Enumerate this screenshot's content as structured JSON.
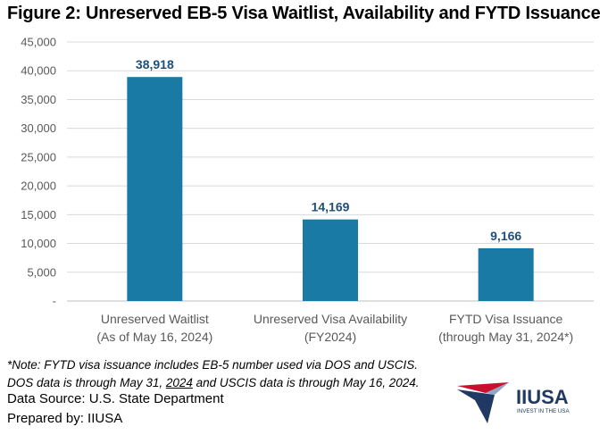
{
  "title": "Figure 2: Unreserved EB-5 Visa Waitlist, Availability and FYTD Issuance",
  "chart_data": {
    "type": "bar",
    "categories": [
      [
        "Unreserved Waitlist",
        "(As of May 16, 2024)"
      ],
      [
        "Unreserved Visa Availability",
        "(FY2024)"
      ],
      [
        "FYTD Visa Issuance",
        "(through May 31, 2024*)"
      ]
    ],
    "values": [
      38918,
      14169,
      9166
    ],
    "data_labels": [
      "38,918",
      "14,169",
      "9,166"
    ],
    "ylim": [
      0,
      45000
    ],
    "yticks": [
      0,
      5000,
      10000,
      15000,
      20000,
      25000,
      30000,
      35000,
      40000,
      45000
    ],
    "ytick_labels": [
      "-",
      "5,000",
      "10,000",
      "15,000",
      "20,000",
      "25,000",
      "30,000",
      "35,000",
      "40,000",
      "45,000"
    ],
    "grid": true,
    "bar_color": "#1a7aa6",
    "label_color": "#1f4e79"
  },
  "footer": {
    "note_line1": "*Note: FYTD visa issuance includes EB-5 number used via DOS and USCIS.",
    "note_line2_a": "DOS data is through May 31, ",
    "note_line2_b": "2024",
    "note_line2_c": " and USCIS data is through May 16, 2024.",
    "source": "Data Source: U.S. State Department",
    "prepared": "Prepared by: IIUSA"
  },
  "logo": {
    "name": "IIUSA",
    "tagline": "INVEST IN THE USA",
    "red": "#c8102e",
    "blue": "#1f3864"
  }
}
